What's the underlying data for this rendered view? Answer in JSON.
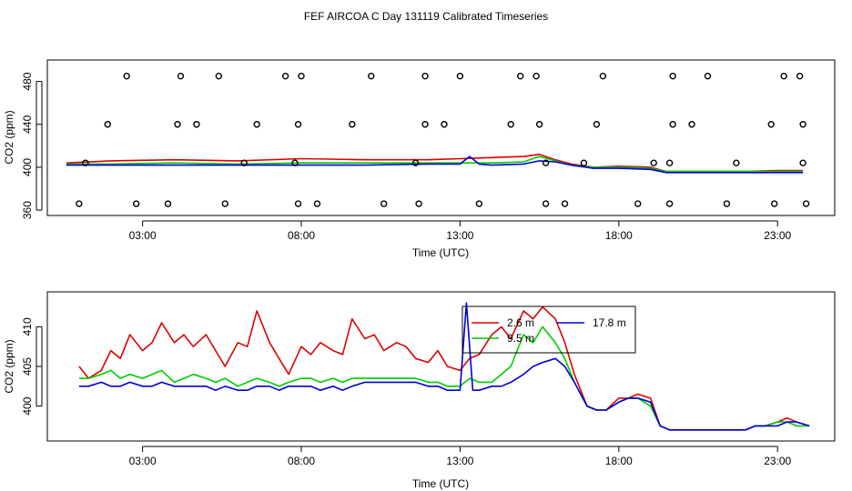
{
  "title": "FEF AIRCOA C  Day 131119  Calibrated Timeseries",
  "colors": {
    "2.6 m": "#dd0000",
    "9.5 m": "#00cc00",
    "17.8 m": "#0000dd",
    "flags": "#000000"
  },
  "chart_data": [
    {
      "type": "line",
      "name": "top-panel",
      "xlabel": "Time (UTC)",
      "ylabel": "CO2 (ppm)",
      "xlim": [
        0,
        24.8
      ],
      "ylim": [
        355,
        500
      ],
      "xticks": [
        3,
        8,
        13,
        18,
        23
      ],
      "xtick_labels": [
        "03:00",
        "08:00",
        "13:00",
        "18:00",
        "23:00"
      ],
      "yticks": [
        360,
        400,
        440,
        480
      ],
      "ytick_labels": [
        "360",
        "400",
        "440",
        "480"
      ],
      "series": [
        {
          "name": "2.6 m",
          "x": [
            0.6,
            2,
            4,
            6,
            8,
            10,
            12,
            13,
            14,
            15,
            15.5,
            16,
            16.5,
            17.2,
            18,
            19,
            19.5,
            20,
            21,
            22,
            23,
            23.8
          ],
          "values": [
            404,
            406,
            407,
            406,
            408,
            407,
            407,
            408,
            409,
            410,
            412,
            407,
            403,
            400,
            401,
            400,
            396,
            396,
            396,
            396,
            397,
            397
          ]
        },
        {
          "name": "9.5 m",
          "x": [
            0.6,
            2,
            4,
            6,
            8,
            10,
            12,
            13,
            14,
            15,
            15.5,
            16,
            16.5,
            17.2,
            18,
            19,
            19.5,
            20,
            21,
            22,
            23,
            23.8
          ],
          "values": [
            403,
            403,
            404,
            403,
            404,
            404,
            404,
            404,
            404,
            405,
            410,
            406,
            402,
            400,
            400,
            399,
            396,
            396,
            396,
            396,
            396,
            396
          ]
        },
        {
          "name": "17.8 m",
          "x": [
            0.6,
            2,
            4,
            6,
            8,
            10,
            12,
            13,
            13.3,
            13.6,
            14,
            15,
            15.5,
            16,
            16.5,
            17.2,
            18,
            19,
            19.5,
            20,
            21,
            22,
            23,
            23.8
          ],
          "values": [
            402,
            402,
            402,
            402,
            402,
            402,
            403,
            403,
            410,
            403,
            402,
            403,
            406,
            405,
            402,
            399,
            399,
            398,
            395,
            395,
            395,
            395,
            395,
            395
          ]
        },
        {
          "name": "flags-480",
          "x": [
            2.5,
            4.2,
            5.4,
            7.5,
            8,
            10.2,
            11.9,
            13,
            14.9,
            15.4,
            17.5,
            19.7,
            20.8,
            23.2,
            23.7
          ],
          "values": [
            485,
            485,
            485,
            485,
            485,
            485,
            485,
            485,
            485,
            485,
            485,
            485,
            485,
            485,
            485
          ]
        },
        {
          "name": "flags-440",
          "x": [
            1.9,
            4.1,
            4.7,
            6.6,
            7.9,
            9.6,
            11.9,
            12.5,
            14.6,
            15.5,
            17.3,
            19.7,
            20.3,
            22.8,
            23.8
          ],
          "values": [
            440,
            440,
            440,
            440,
            440,
            440,
            440,
            440,
            440,
            440,
            440,
            440,
            440,
            440,
            440
          ]
        },
        {
          "name": "flags-405",
          "x": [
            1.2,
            6.2,
            7.8,
            11.6,
            15.7,
            16.9,
            19.1,
            19.6,
            21.7,
            23.8
          ],
          "values": [
            404,
            404,
            404,
            404,
            404,
            404,
            404,
            404,
            404,
            404
          ]
        },
        {
          "name": "flags-366",
          "x": [
            1,
            2.8,
            3.8,
            5.6,
            7.9,
            8.5,
            10.6,
            11.7,
            13.6,
            15.7,
            16.3,
            18.6,
            19.6,
            21.4,
            22.9,
            23.9
          ],
          "values": [
            366,
            366,
            366,
            366,
            366,
            366,
            366,
            366,
            366,
            366,
            366,
            366,
            366,
            366,
            366,
            366
          ]
        }
      ]
    },
    {
      "type": "line",
      "name": "bottom-panel",
      "xlabel": "Time (UTC)",
      "ylabel": "CO2 (ppm)",
      "xlim": [
        0,
        24.8
      ],
      "ylim": [
        395.6,
        414.4
      ],
      "xticks": [
        3,
        8,
        13,
        18,
        23
      ],
      "xtick_labels": [
        "03:00",
        "08:00",
        "13:00",
        "18:00",
        "23:00"
      ],
      "yticks": [
        400,
        405,
        410
      ],
      "ytick_labels": [
        "400",
        "405",
        "410"
      ],
      "legend": {
        "position": "top-center",
        "entries": [
          "2.6 m",
          "9.5 m",
          "17.8 m"
        ]
      },
      "series": [
        {
          "name": "2.6 m",
          "x": [
            1,
            1.3,
            1.7,
            2,
            2.3,
            2.6,
            3,
            3.3,
            3.6,
            4,
            4.3,
            4.6,
            5,
            5.3,
            5.6,
            6,
            6.3,
            6.6,
            7,
            7.3,
            7.6,
            8,
            8.3,
            8.6,
            9,
            9.3,
            9.6,
            10,
            10.3,
            10.6,
            11,
            11.3,
            11.6,
            12,
            12.3,
            12.6,
            13,
            13.3,
            13.6,
            14,
            14.3,
            14.6,
            15,
            15.3,
            15.6,
            16,
            16.3,
            16.6,
            17,
            17.3,
            17.6,
            18,
            18.3,
            18.6,
            19,
            19.3,
            19.6,
            20,
            20.3,
            20.6,
            21,
            21.3,
            21.6,
            22,
            22.3,
            22.6,
            23,
            23.3,
            23.6,
            24
          ],
          "values": [
            405,
            403.5,
            404.5,
            407,
            406,
            409,
            407,
            408,
            410.5,
            408,
            409,
            407.5,
            409,
            407,
            405,
            408,
            407.5,
            412,
            408,
            406,
            404,
            407.5,
            406.5,
            408,
            407,
            406.5,
            411,
            408.5,
            409,
            407,
            408,
            407.5,
            406,
            405.5,
            407,
            405,
            404.5,
            406,
            406.5,
            409,
            410,
            408.5,
            412,
            411,
            412.5,
            411,
            408,
            404,
            400,
            399.5,
            399.5,
            401,
            401,
            401.5,
            401,
            397.5,
            397,
            397,
            397,
            397,
            397,
            397,
            397,
            397,
            397.5,
            397.5,
            398,
            398.5,
            398,
            397.5
          ]
        },
        {
          "name": "9.5 m",
          "x": [
            1,
            1.3,
            1.7,
            2,
            2.3,
            2.6,
            3,
            3.3,
            3.6,
            4,
            4.3,
            4.6,
            5,
            5.3,
            5.6,
            6,
            6.3,
            6.6,
            7,
            7.3,
            7.6,
            8,
            8.3,
            8.6,
            9,
            9.3,
            9.6,
            10,
            10.3,
            10.6,
            11,
            11.3,
            11.6,
            12,
            12.3,
            12.6,
            13,
            13.3,
            13.6,
            14,
            14.3,
            14.6,
            15,
            15.3,
            15.6,
            16,
            16.3,
            16.6,
            17,
            17.3,
            17.6,
            18,
            18.3,
            18.6,
            19,
            19.3,
            19.6,
            20,
            20.3,
            20.6,
            21,
            21.3,
            21.6,
            22,
            22.3,
            22.6,
            23,
            23.3,
            23.6,
            24
          ],
          "values": [
            403.5,
            403.5,
            404,
            404.5,
            403.5,
            404,
            403.5,
            404,
            404.5,
            403,
            403.5,
            404,
            403.5,
            403,
            403.5,
            402.5,
            403,
            403.5,
            403,
            402.5,
            403,
            403.5,
            403.5,
            403,
            403.5,
            403,
            403.5,
            403.5,
            403.5,
            403.5,
            403.5,
            403.5,
            403.5,
            403,
            403,
            402.5,
            402.5,
            403.5,
            403,
            403,
            404,
            405,
            409,
            408,
            410,
            408,
            406,
            403,
            400,
            399.5,
            399.5,
            400.5,
            401,
            401,
            400,
            397.5,
            397,
            397,
            397,
            397,
            397,
            397,
            397,
            397,
            397.5,
            397.5,
            398,
            398,
            397.5,
            397.5
          ]
        },
        {
          "name": "17.8 m",
          "x": [
            1,
            1.3,
            1.7,
            2,
            2.3,
            2.6,
            3,
            3.3,
            3.6,
            4,
            4.3,
            4.6,
            5,
            5.3,
            5.6,
            6,
            6.3,
            6.6,
            7,
            7.3,
            7.6,
            8,
            8.3,
            8.6,
            9,
            9.3,
            9.6,
            10,
            10.3,
            10.6,
            11,
            11.3,
            11.6,
            12,
            12.3,
            12.6,
            13,
            13.2,
            13.4,
            13.6,
            14,
            14.3,
            14.6,
            15,
            15.3,
            15.6,
            16,
            16.3,
            16.6,
            17,
            17.3,
            17.6,
            18,
            18.3,
            18.6,
            19,
            19.3,
            19.6,
            20,
            20.3,
            20.6,
            21,
            21.3,
            21.6,
            22,
            22.3,
            22.6,
            23,
            23.3,
            23.6,
            24
          ],
          "values": [
            402.5,
            402.5,
            403,
            402.5,
            402.5,
            403,
            402.5,
            402.5,
            403,
            402.5,
            402.5,
            402.5,
            402.5,
            402,
            402.5,
            402,
            402,
            402.5,
            402.5,
            402,
            402.5,
            402.5,
            402.5,
            402,
            402.5,
            402,
            402.5,
            403,
            403,
            403,
            403,
            403,
            403,
            402.5,
            402.5,
            402,
            402,
            413,
            402,
            402,
            402.5,
            402.5,
            403,
            404,
            405,
            405.5,
            406,
            405,
            403,
            400,
            399.5,
            399.5,
            400.5,
            401,
            401,
            400.5,
            397.5,
            397,
            397,
            397,
            397,
            397,
            397,
            397,
            397,
            397.5,
            397.5,
            397.5,
            398,
            398,
            397.5
          ]
        }
      ]
    }
  ]
}
